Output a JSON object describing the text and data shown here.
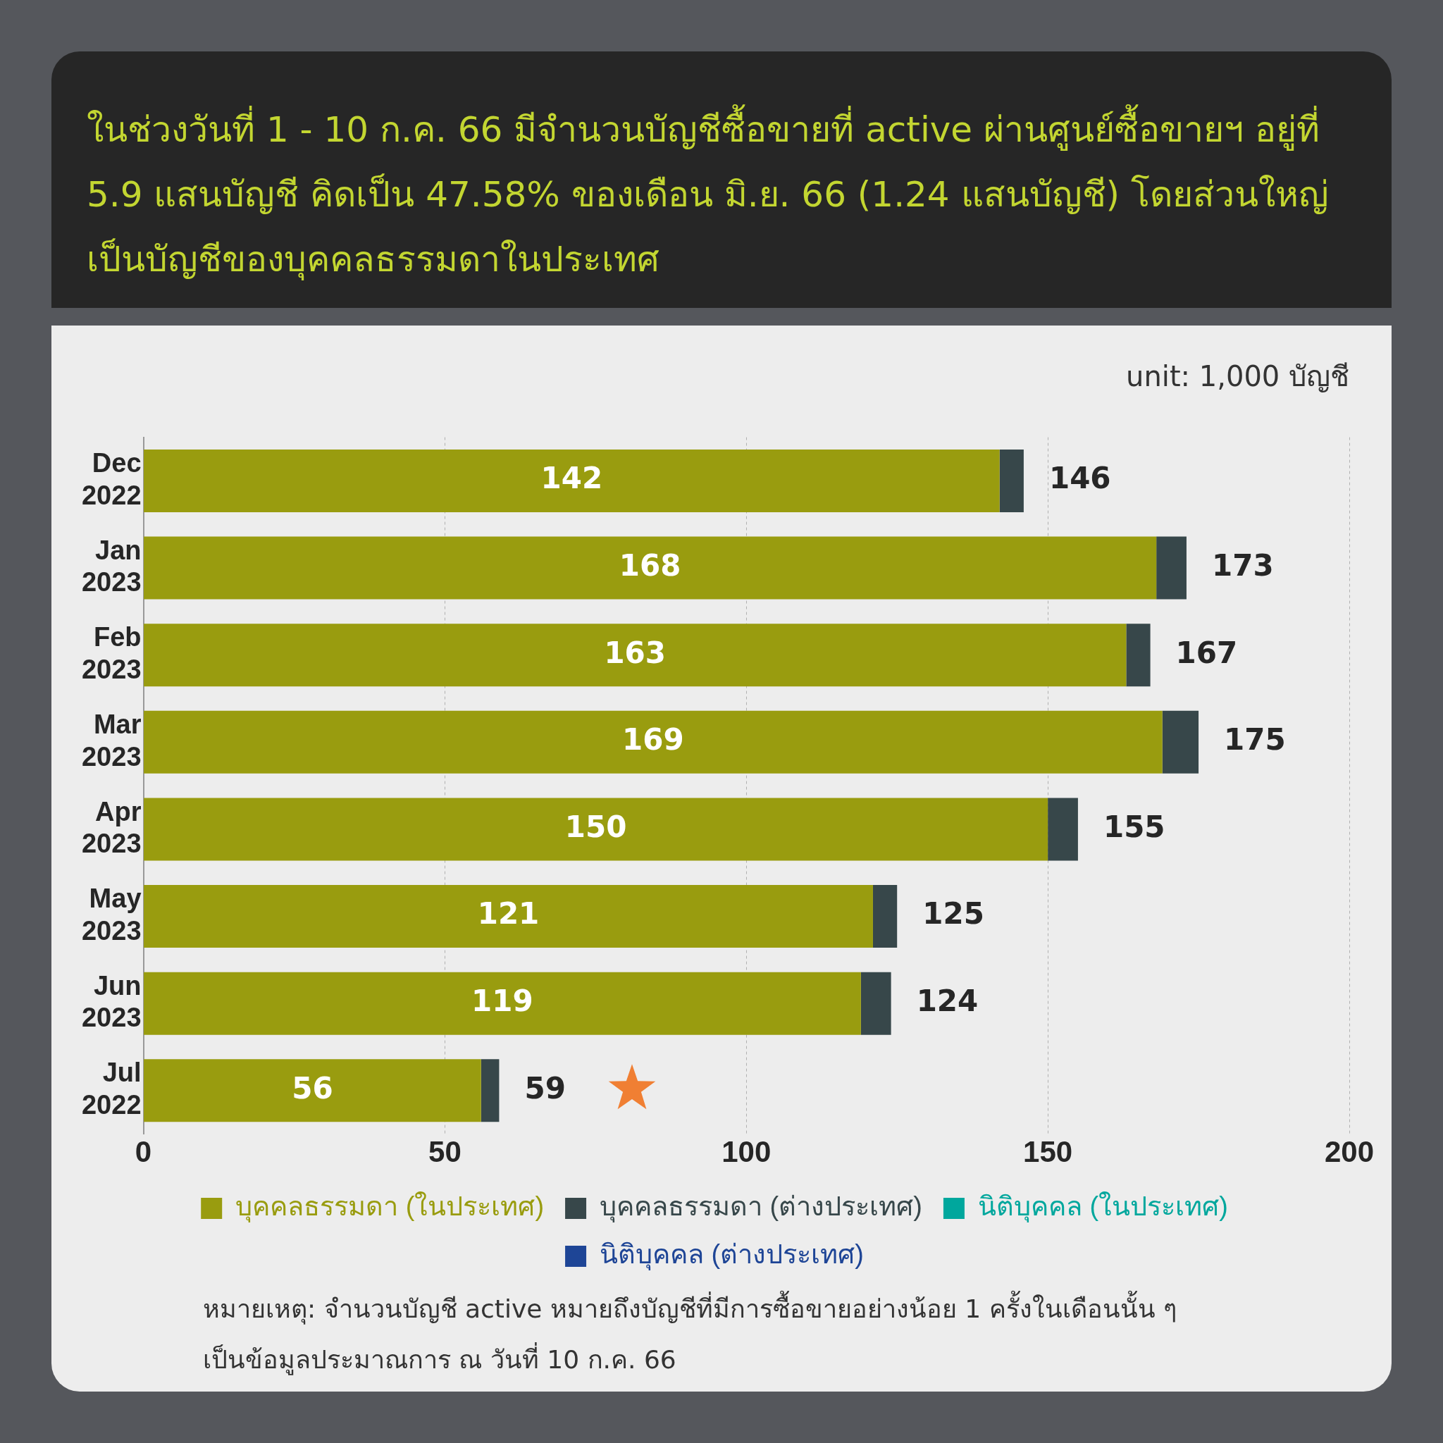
{
  "chart_data": {
    "type": "bar",
    "orientation": "horizontal",
    "stacked": true,
    "title": "ในช่วงวันที่ 1 - 10 ก.ค. 66 มีจำนวนบัญชีซื้อขายที่ active ผ่านศูนย์ซื้อขายฯ อยู่ที่ 5.9 แสนบัญชี คิดเป็น 47.58% ของเดือน มิ.ย. 66 (1.24 แสนบัญชี) โดยส่วนใหญ่เป็นบัญชีของบุคคลธรรมดาในประเทศ",
    "subtitle": "unit: 1,000 บัญชี",
    "categories": [
      "Dec 2022",
      "Jan 2023",
      "Feb 2023",
      "Mar 2023",
      "Apr 2023",
      "May 2023",
      "Jun 2023",
      "Jul 2022"
    ],
    "series": [
      {
        "name": "บุคคลธรรมดา (ในประเทศ)",
        "color": "#999c0f",
        "values": [
          142,
          168,
          163,
          169,
          150,
          121,
          119,
          56
        ],
        "value_labels": [
          "142",
          "168",
          "163",
          "169",
          "150",
          "121",
          "119",
          "56"
        ]
      },
      {
        "name": "บุคคลธรรมดา (ต่างประเทศ)",
        "color": "#37474a",
        "values": [
          4,
          5,
          4,
          6,
          5,
          4,
          5,
          3
        ]
      },
      {
        "name": "นิติบุคคล (ในประเทศ)",
        "color": "#00a79d",
        "values": [
          0,
          0,
          0,
          0,
          0,
          0,
          0,
          0
        ]
      },
      {
        "name": "นิติบุคคล (ต่างประเทศ)",
        "color": "#1e4596",
        "values": [
          0,
          0,
          0,
          0,
          0,
          0,
          0,
          0
        ]
      }
    ],
    "totals": [
      "146",
      "173",
      "167",
      "175",
      "155",
      "125",
      "124",
      "59"
    ],
    "xlim": [
      0,
      200
    ],
    "xticks": [
      0,
      50,
      100,
      150,
      200
    ],
    "grid": "x",
    "legend": "bottom",
    "annotations": [
      "หมายเหตุ: จำนวนบัญชี active หมายถึงบัญชีที่มีการซื้อขายอย่างน้อย 1 ครั้งในเดือนนั้น ๆ\nเป็นข้อมูลประมาณการ ณ วันที่ 10 ก.ค. 66"
    ]
  }
}
